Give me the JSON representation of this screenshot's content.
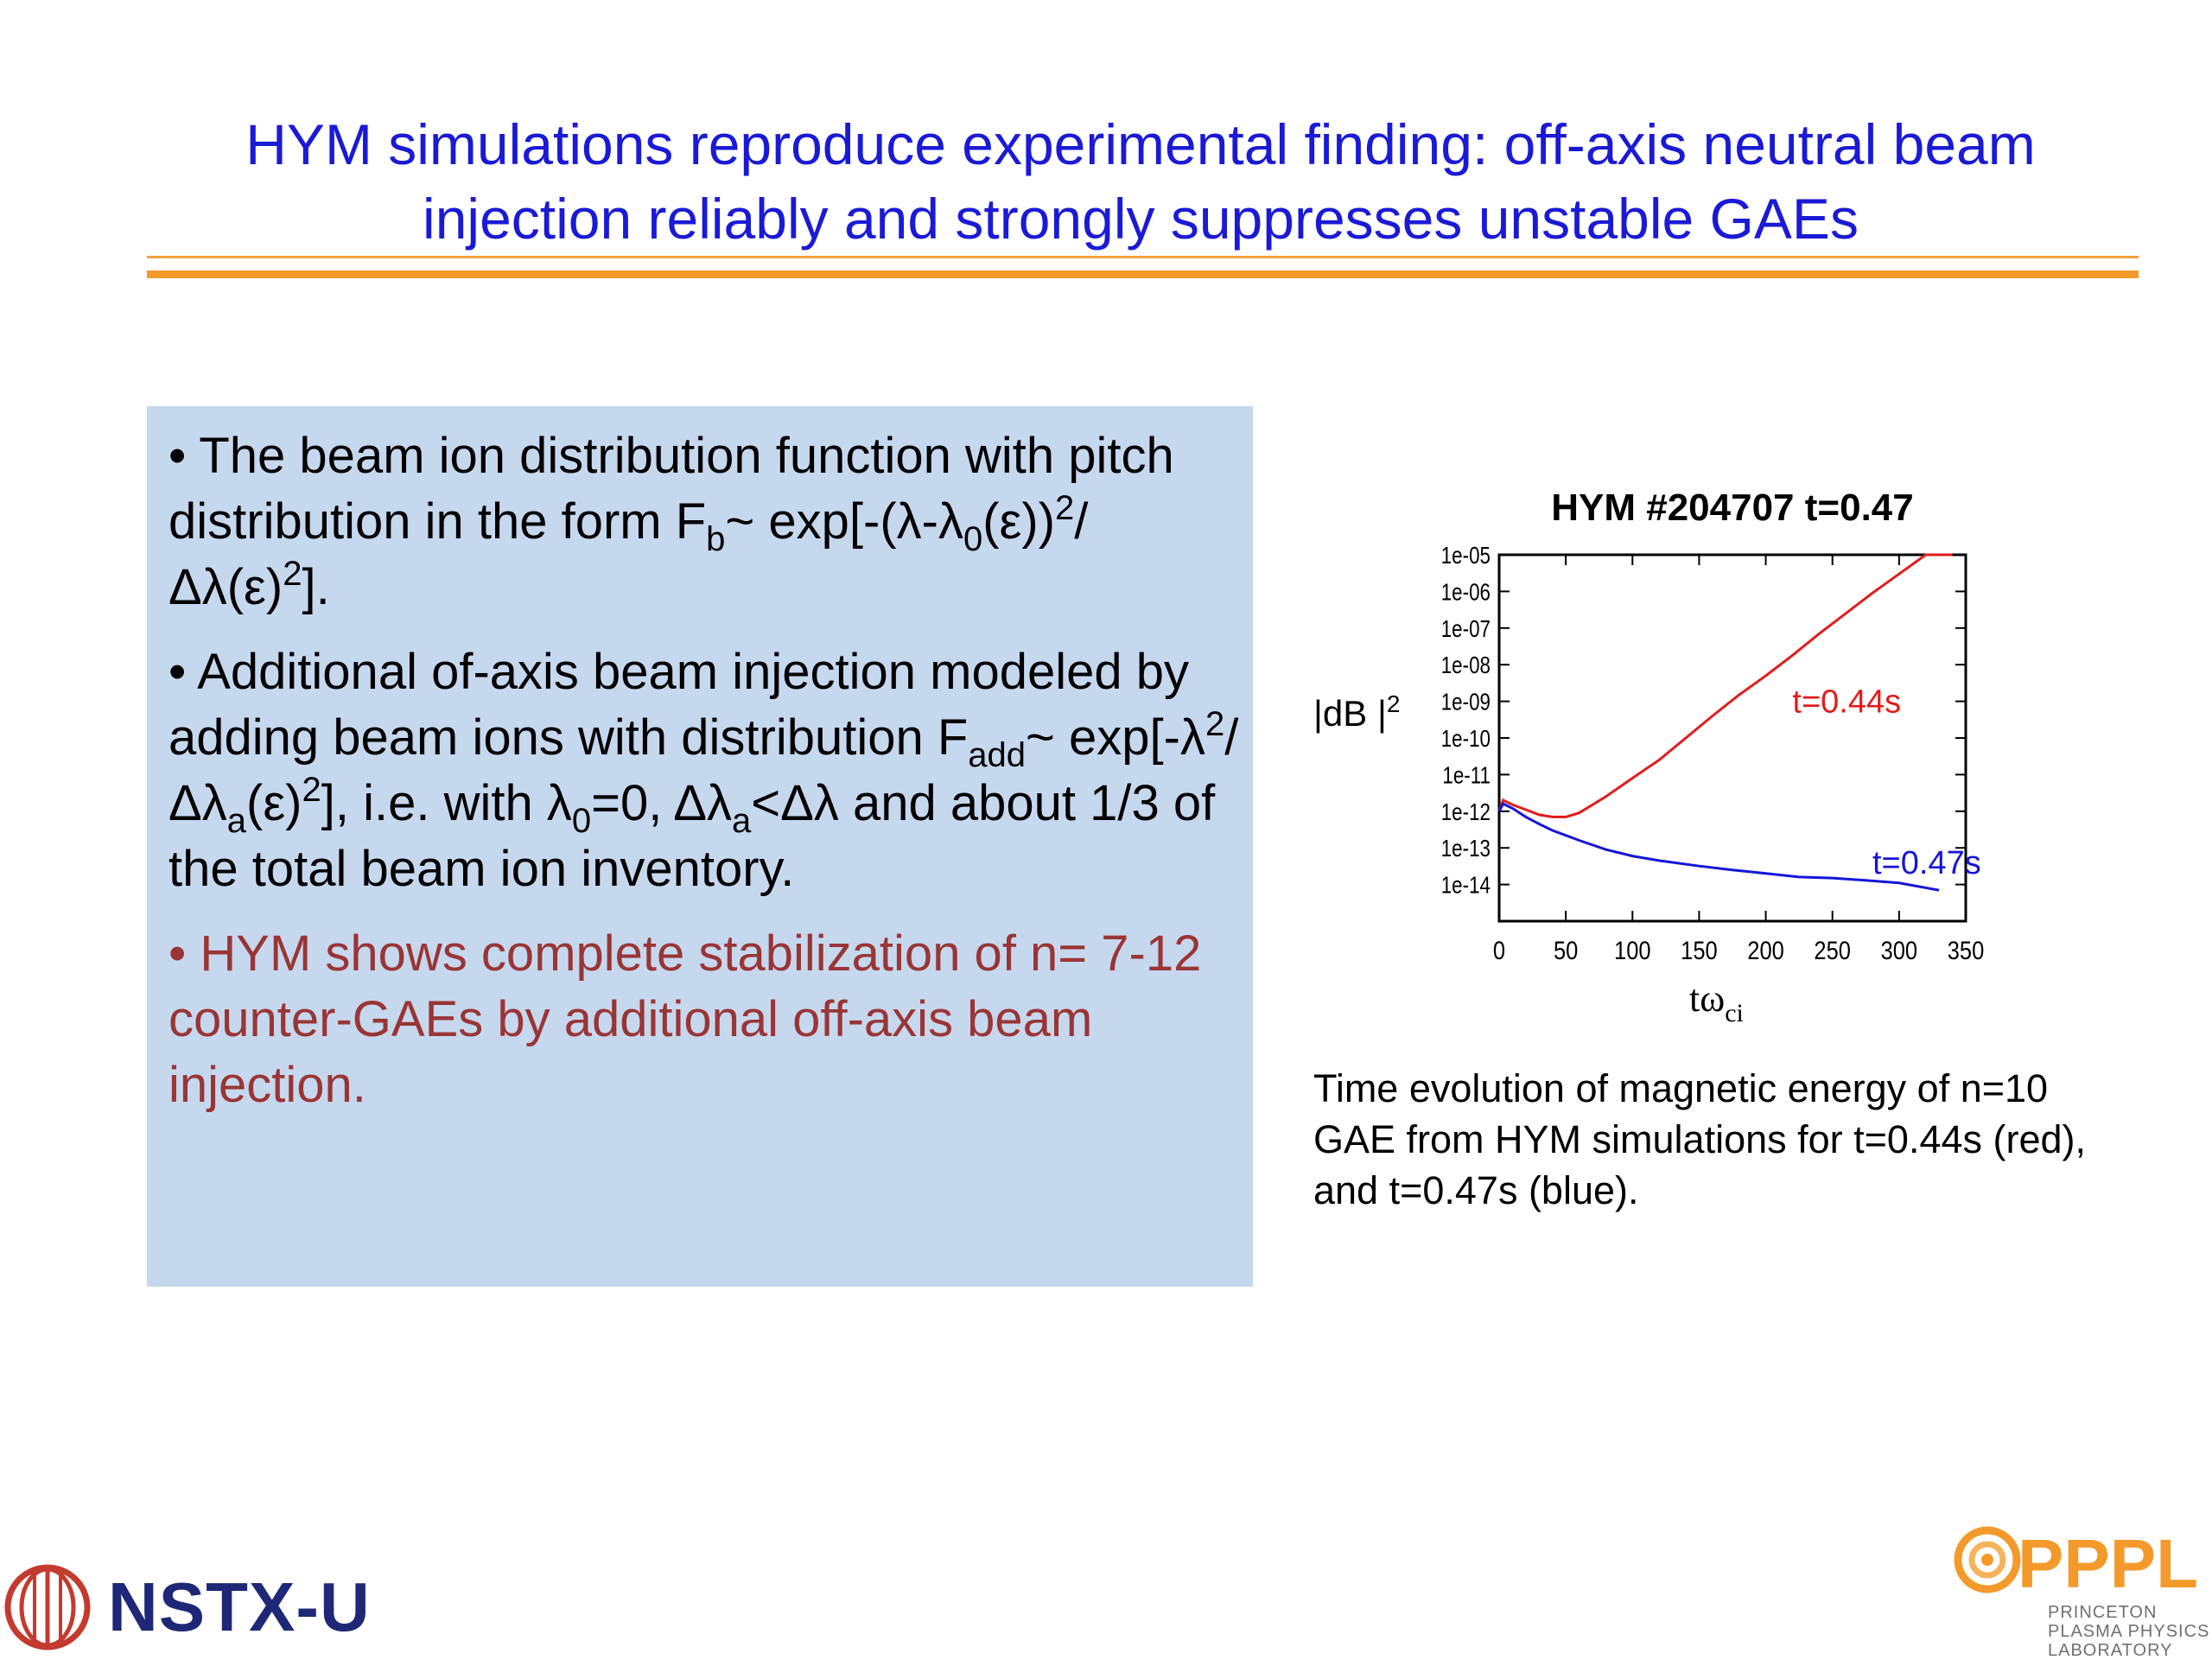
{
  "slide": {
    "title_line1": "HYM simulations reproduce experimental finding: off-axis neutral beam",
    "title_line2": "injection reliably and strongly suppresses unstable GAEs",
    "bullet3": "•  HYM shows complete stabilization of n= 7-12  counter-GAEs by additional off-axis beam injection.",
    "caption": "Time evolution of magnetic energy of n=10 GAE from HYM simulations for t=0.44s (red), and t=0.47s (blue).",
    "logo_left": "NSTX-U",
    "logo_right": "PPPL",
    "logo_right_sub1": "PRINCETON",
    "logo_right_sub2": "PLASMA PHYSICS",
    "logo_right_sub3": "LABORATORY"
  },
  "chart_data": {
    "type": "line",
    "title": "HYM #204707 t=0.47",
    "xlabel": "tω",
    "xlabel_sub": "ci",
    "ylabel": "|dB |",
    "ylabel_sup": "2",
    "xlim": [
      0,
      350
    ],
    "ylim": [
      1e-15,
      1e-05
    ],
    "yscale": "log",
    "xticks": [
      "0",
      "50",
      "100",
      "150",
      "200",
      "250",
      "300",
      "350"
    ],
    "yticks": [
      "1e-05",
      "1e-06",
      "1e-07",
      "1e-08",
      "1e-09",
      "1e-10",
      "1e-11",
      "1e-12",
      "1e-13",
      "1e-14"
    ],
    "series": [
      {
        "name": "t=0.44s",
        "color": "#e31b1b",
        "x": [
          0,
          3,
          10,
          20,
          30,
          40,
          50,
          60,
          70,
          80,
          100,
          120,
          140,
          160,
          180,
          200,
          220,
          240,
          260,
          280,
          300,
          320,
          340
        ],
        "y": [
          1e-12,
          2e-12,
          1.5e-12,
          1.1e-12,
          8e-13,
          7e-13,
          7e-13,
          9e-13,
          1.5e-12,
          2.5e-12,
          8e-12,
          2.5e-11,
          1e-10,
          4e-10,
          1.5e-09,
          5e-09,
          1.8e-08,
          7e-08,
          2.5e-07,
          9e-07,
          3e-06,
          1e-05,
          1e-05
        ]
      },
      {
        "name": "t=0.47s",
        "color": "#1515d8",
        "x": [
          0,
          3,
          10,
          20,
          30,
          40,
          50,
          60,
          80,
          100,
          120,
          150,
          175,
          200,
          225,
          250,
          275,
          300,
          330
        ],
        "y": [
          1e-12,
          1.6e-12,
          1.2e-12,
          7e-13,
          4.5e-13,
          3e-13,
          2.2e-13,
          1.6e-13,
          9e-14,
          6e-14,
          4.5e-14,
          3.2e-14,
          2.5e-14,
          2e-14,
          1.6e-14,
          1.5e-14,
          1.3e-14,
          1.1e-14,
          7e-15
        ]
      }
    ],
    "annotations": [
      {
        "text": "t=0.44s",
        "color": "#e31b1b",
        "x": 220,
        "y": 5e-10
      },
      {
        "text": "t=0.47s",
        "color": "#1515d8",
        "x": 280,
        "y": 2e-14
      }
    ]
  }
}
